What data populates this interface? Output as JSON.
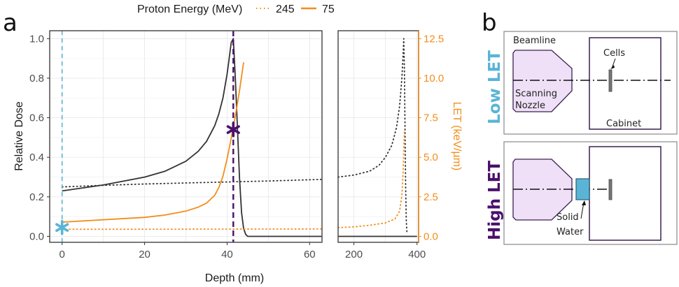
{
  "panels": {
    "a": "a",
    "b": "b"
  },
  "legend": {
    "title": "Proton Energy (MeV)",
    "items": [
      {
        "label": "245",
        "style": "dotted",
        "color": "#f28e1c"
      },
      {
        "label": "75",
        "style": "solid",
        "color": "#f28e1c"
      }
    ]
  },
  "colors": {
    "dose": "#333333",
    "let": "#f28e1c",
    "low_let": "#5ab4d6",
    "high_let": "#4b0f6b",
    "nozzle": "#efe0f7",
    "solid_water": "#5ab4d6"
  },
  "chart_data": [
    {
      "type": "line",
      "panel": "main",
      "xlabel": "Depth (mm)",
      "ylabel": "Relative Dose",
      "y2label": "LET (keV/µm)",
      "xlim": [
        -3,
        63
      ],
      "ylim": [
        -0.03,
        1.04
      ],
      "y2lim": [
        -0.375,
        13.0
      ],
      "xticks": [
        0,
        20,
        40,
        60
      ],
      "yticks": [
        "0.0",
        "0.2",
        "0.4",
        "0.6",
        "0.8",
        "1.0"
      ],
      "y2ticks": [
        "0.0",
        "2.5",
        "5.0",
        "7.5",
        "10.0",
        "12.5"
      ],
      "grid": true,
      "vlines": [
        {
          "x": 0,
          "color": "#5ab4d6",
          "style": "dashed"
        },
        {
          "x": 41.5,
          "color": "#4b0f6b",
          "style": "dashed"
        }
      ],
      "markers": [
        {
          "x": 0,
          "y": 0.045,
          "symbol": "*",
          "color": "#5ab4d6"
        },
        {
          "x": 41.5,
          "y": 0.54,
          "symbol": "*",
          "color": "#4b0f6b"
        }
      ],
      "series": [
        {
          "name": "Dose 75 MeV",
          "axis": "left",
          "style": "solid",
          "color": "#333333",
          "x": [
            0,
            5,
            10,
            15,
            20,
            25,
            30,
            33,
            35,
            37,
            38,
            39,
            40,
            40.5,
            41,
            41.5,
            42,
            42.5,
            43,
            43.5,
            44,
            44.5,
            45,
            50,
            63
          ],
          "y": [
            0.23,
            0.245,
            0.26,
            0.28,
            0.3,
            0.33,
            0.38,
            0.43,
            0.48,
            0.56,
            0.62,
            0.7,
            0.82,
            0.9,
            0.98,
            1.0,
            0.8,
            0.55,
            0.3,
            0.12,
            0.04,
            0.01,
            0.0,
            0.0,
            0.0
          ]
        },
        {
          "name": "Dose 245 MeV",
          "axis": "left",
          "style": "dotted",
          "color": "#333333",
          "x": [
            0,
            10,
            20,
            30,
            40,
            50,
            63
          ],
          "y": [
            0.25,
            0.258,
            0.265,
            0.27,
            0.275,
            0.28,
            0.288
          ]
        },
        {
          "name": "LET 75 MeV",
          "axis": "right",
          "style": "solid",
          "color": "#f28e1c",
          "x": [
            0,
            10,
            20,
            25,
            30,
            33,
            35,
            37,
            38,
            39,
            40,
            41,
            42,
            43,
            44
          ],
          "y": [
            0.9,
            1.05,
            1.2,
            1.35,
            1.6,
            1.85,
            2.1,
            2.6,
            3.1,
            3.8,
            4.9,
            6.2,
            7.6,
            9.2,
            11.0
          ]
        },
        {
          "name": "LET 245 MeV",
          "axis": "right",
          "style": "dotted",
          "color": "#f28e1c",
          "x": [
            0,
            20,
            40,
            63
          ],
          "y": [
            0.45,
            0.45,
            0.46,
            0.47
          ]
        }
      ]
    },
    {
      "type": "line",
      "panel": "inset",
      "xlim": [
        150,
        405
      ],
      "xticks": [
        200,
        400
      ],
      "grid": true,
      "series": [
        {
          "name": "Dose 75 MeV",
          "axis": "left",
          "style": "solid",
          "color": "#333333",
          "x": [
            150,
            400
          ],
          "y": [
            0.0,
            0.0
          ]
        },
        {
          "name": "Dose 245 MeV",
          "axis": "left",
          "style": "dotted",
          "color": "#333333",
          "x": [
            150,
            200,
            250,
            280,
            300,
            320,
            335,
            345,
            352,
            356,
            358,
            360,
            362,
            364,
            366,
            368
          ],
          "y": [
            0.3,
            0.31,
            0.33,
            0.36,
            0.4,
            0.46,
            0.55,
            0.66,
            0.8,
            0.92,
            1.0,
            0.85,
            0.55,
            0.25,
            0.08,
            0.02
          ]
        },
        {
          "name": "LET 245 MeV",
          "axis": "right",
          "style": "dotted",
          "color": "#f28e1c",
          "x": [
            150,
            200,
            250,
            300,
            330,
            345,
            352,
            356,
            358,
            360
          ],
          "y": [
            0.55,
            0.6,
            0.7,
            0.85,
            1.1,
            1.6,
            2.6,
            4.0,
            5.5,
            6.6
          ]
        }
      ]
    }
  ],
  "diagram": {
    "low": {
      "label": "Low LET",
      "beamline": "Beamline",
      "nozzle": "Scanning\nNozzle",
      "nozzle_l1": "Scanning",
      "nozzle_l2": "Nozzle",
      "cells": "Cells",
      "cabinet": "Cabinet"
    },
    "high": {
      "label": "High LET",
      "sw_l1": "Solid",
      "sw_l2": "Water"
    }
  }
}
